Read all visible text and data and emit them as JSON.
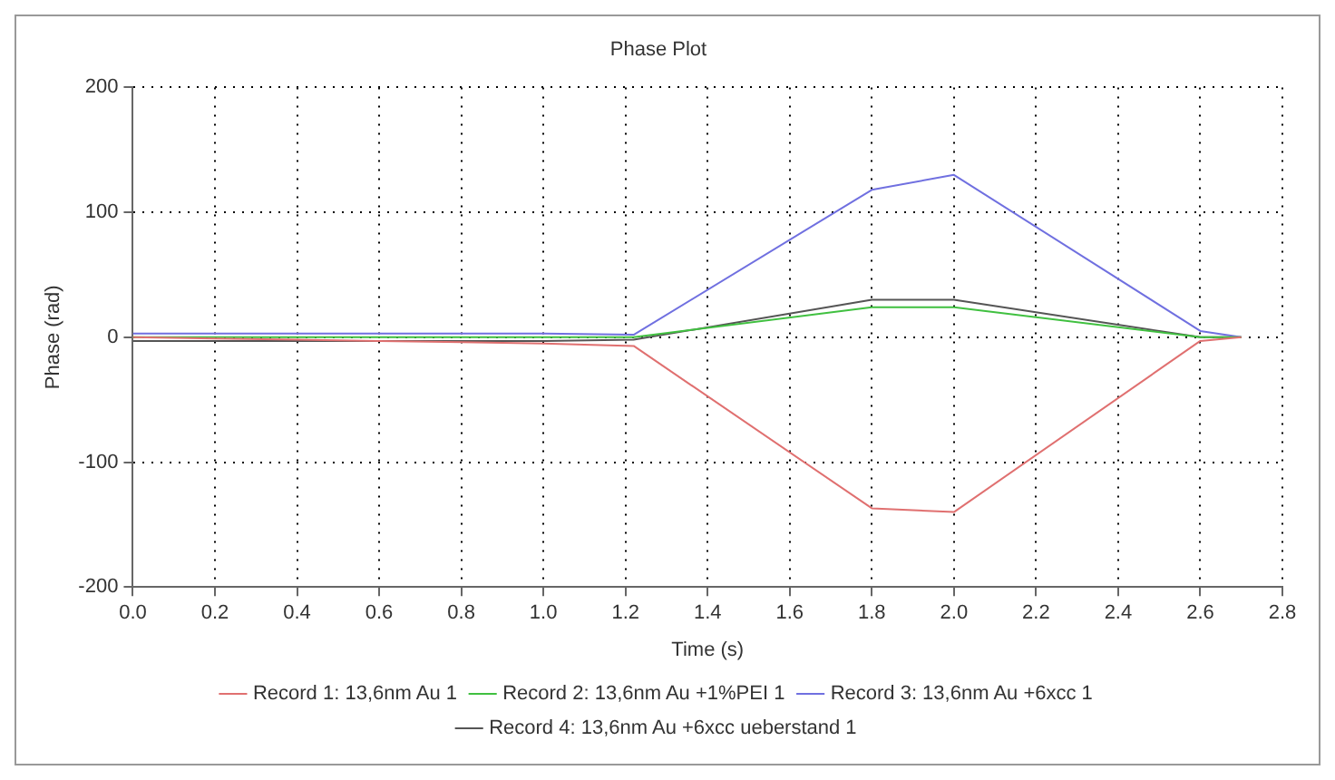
{
  "chart_data": {
    "type": "line",
    "title": "Phase Plot",
    "xlabel": "Time (s)",
    "ylabel": "Phase (rad)",
    "x": [
      0,
      0.2,
      0.4,
      0.6,
      0.8,
      1.0,
      1.22,
      1.8,
      2.0,
      2.6,
      2.7
    ],
    "series": [
      {
        "name": "Record 1: 13,6nm Au 1",
        "color": "#e07070",
        "values": [
          0,
          -1,
          -2,
          -3,
          -4,
          -5,
          -7,
          -137,
          -140,
          -3,
          0
        ]
      },
      {
        "name": "Record 2: 13,6nm Au +1%PEI 1",
        "color": "#40c040",
        "values": [
          0,
          0,
          0,
          0,
          0,
          0,
          0,
          24,
          24,
          0,
          0
        ]
      },
      {
        "name": "Record 3: 13,6nm Au +6xcc 1",
        "color": "#7070e0",
        "values": [
          3,
          3,
          3,
          3,
          3,
          3,
          2,
          118,
          130,
          5,
          0
        ]
      },
      {
        "name": "Record 4: 13,6nm Au +6xcc ueberstand 1",
        "color": "#555555",
        "values": [
          -3,
          -3,
          -3,
          -3,
          -3,
          -3,
          -2,
          30,
          30,
          0,
          0
        ]
      }
    ],
    "xlim": [
      0,
      2.8
    ],
    "xticks": [
      {
        "value": 0,
        "label": "0.0"
      },
      {
        "value": 0.2,
        "label": "0.2"
      },
      {
        "value": 0.4,
        "label": "0.4"
      },
      {
        "value": 0.6,
        "label": "0.6"
      },
      {
        "value": 0.8,
        "label": "0.8"
      },
      {
        "value": 1.0,
        "label": "1.0"
      },
      {
        "value": 1.2,
        "label": "1.2"
      },
      {
        "value": 1.4,
        "label": "1.4"
      },
      {
        "value": 1.6,
        "label": "1.6"
      },
      {
        "value": 1.8,
        "label": "1.8"
      },
      {
        "value": 2.0,
        "label": "2.0"
      },
      {
        "value": 2.2,
        "label": "2.2"
      },
      {
        "value": 2.4,
        "label": "2.4"
      },
      {
        "value": 2.6,
        "label": "2.6"
      },
      {
        "value": 2.8,
        "label": "2.8"
      }
    ],
    "ylim": [
      -200,
      200
    ],
    "yticks": [
      -200,
      -100,
      0,
      100,
      200
    ],
    "grid": true,
    "legend": "bottom",
    "marker": "none",
    "line_style": "solid"
  }
}
